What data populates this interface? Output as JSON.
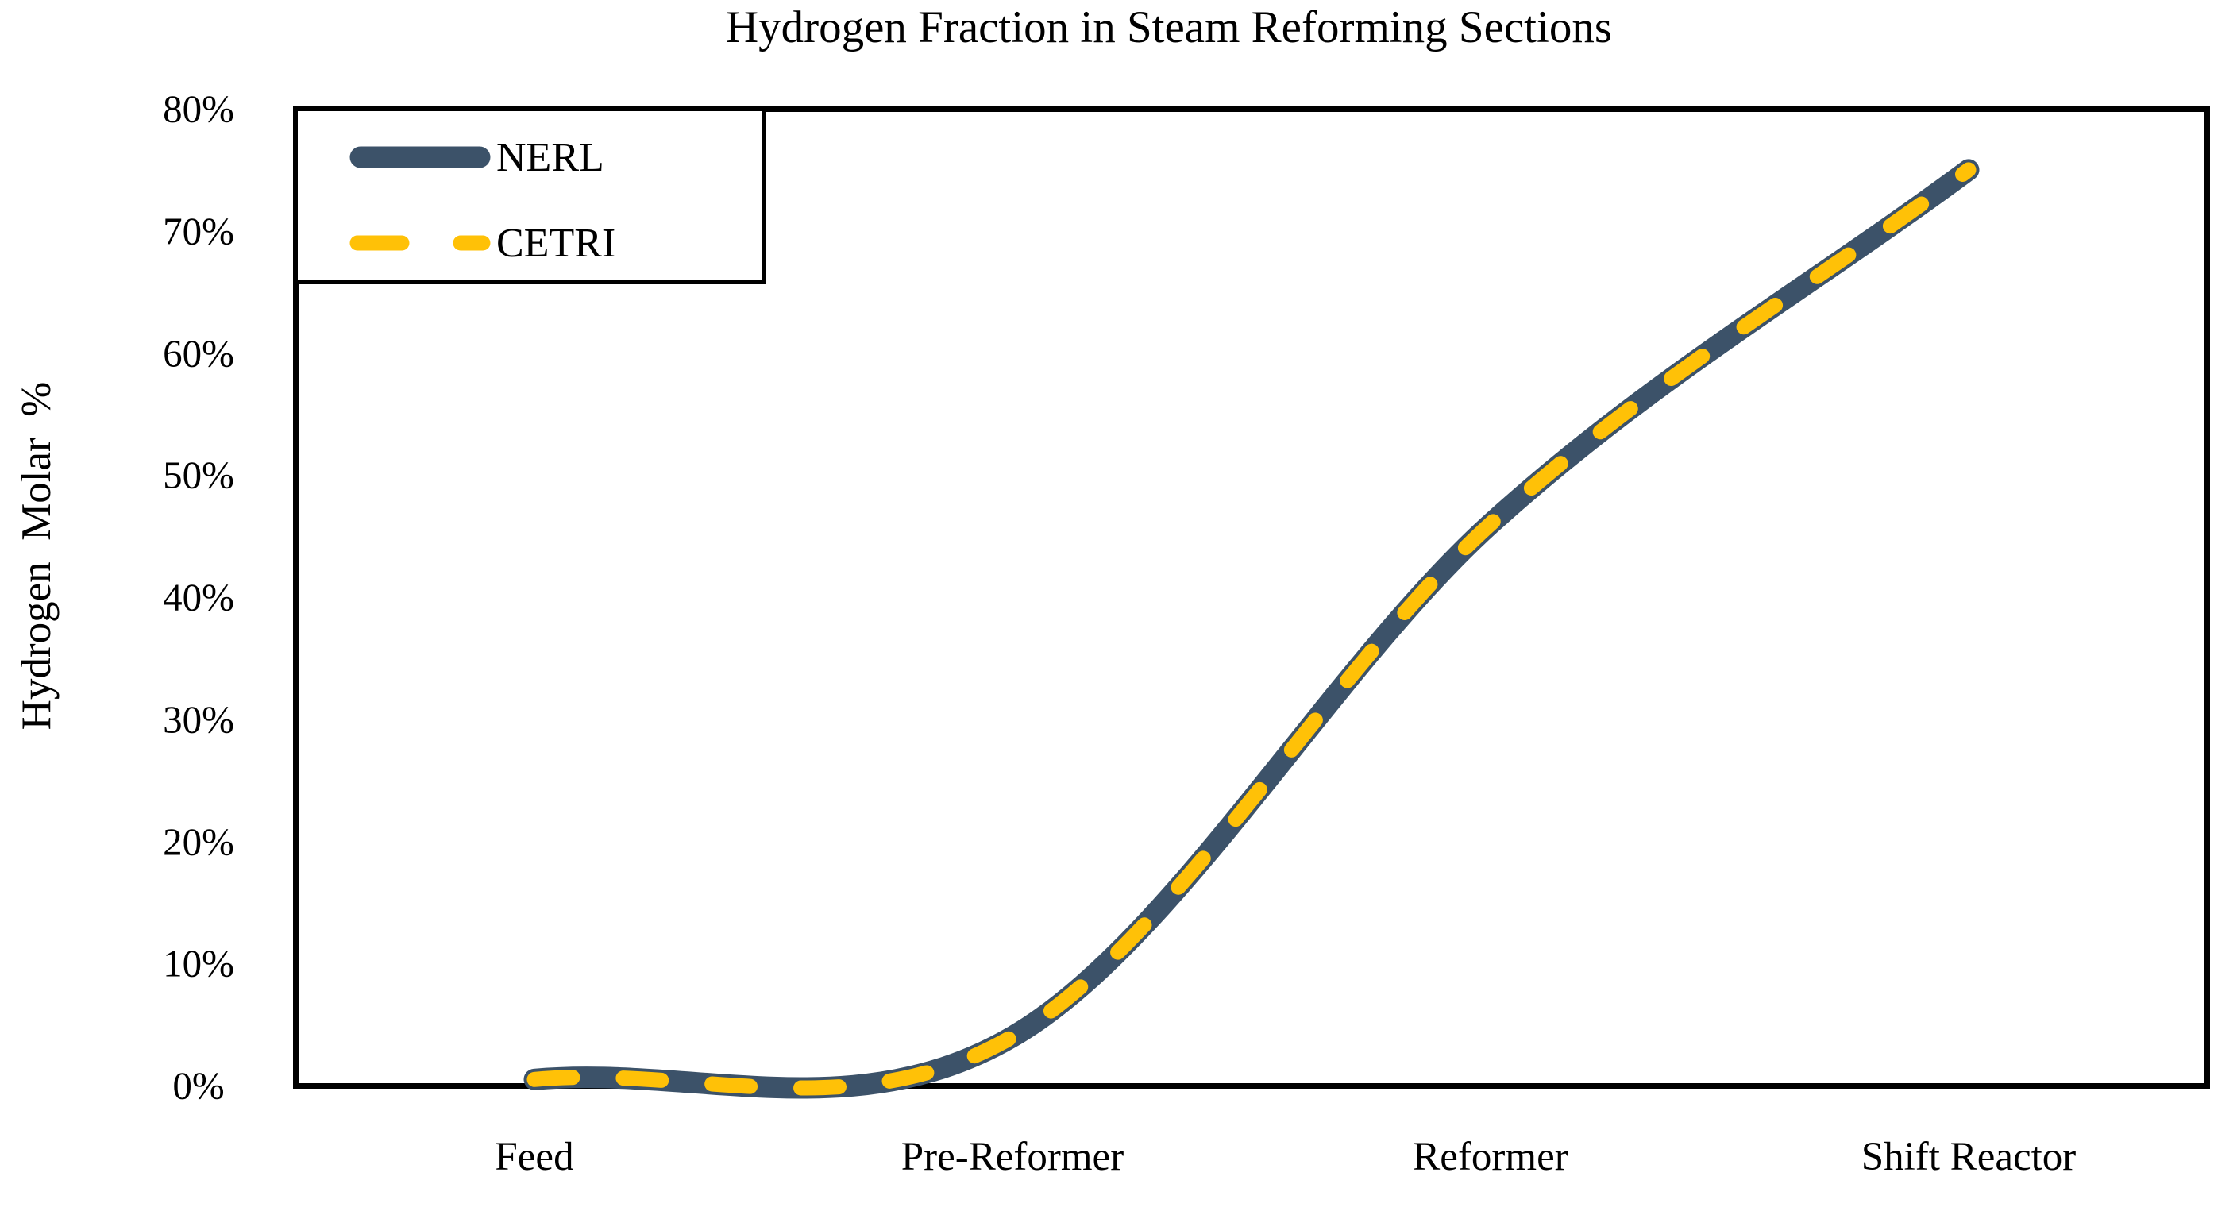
{
  "title": "Hydrogen Fraction in Steam Reforming Sections",
  "chart_data": {
    "type": "line",
    "line_shape": "smooth",
    "title": "Hydrogen Fraction in Steam Reforming Sections",
    "xlabel": "",
    "ylabel": "Hydrogen  Molar  %",
    "categories": [
      "Feed",
      "Pre-Reformer",
      "Reformer",
      "Shift Reactor"
    ],
    "series": [
      {
        "name": "NERL",
        "values": [
          0.5,
          4,
          46,
          75
        ],
        "color": "#3C5269",
        "style": "solid",
        "stroke_width": 27
      },
      {
        "name": "CETRI",
        "values": [
          0.5,
          4,
          46,
          75
        ],
        "color": "#FFC107",
        "style": "dashed",
        "stroke_width": 19
      }
    ],
    "ylim": [
      0,
      80
    ],
    "yticks": [
      "80%",
      "70%",
      "60%",
      "50%",
      "40%",
      "30%",
      "20%",
      "10%",
      "0%"
    ],
    "ytick_values": [
      80,
      70,
      60,
      50,
      40,
      30,
      20,
      10,
      0
    ],
    "grid": false,
    "legend_position": "top-left",
    "axis_color": "#000000",
    "background_color": "#FFFFFF"
  }
}
